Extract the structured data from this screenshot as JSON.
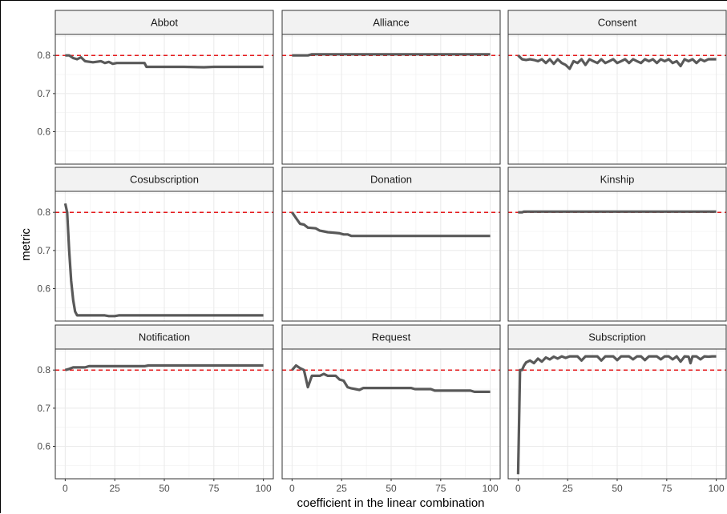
{
  "chart_data": {
    "type": "line",
    "xlabel": "coefficient in the linear combination",
    "ylabel": "metric",
    "xlim": [
      -5,
      105
    ],
    "ylim": [
      0.515,
      0.855
    ],
    "x_ticks": [
      0,
      25,
      50,
      75,
      100
    ],
    "x_tick_labels": [
      "0",
      "25",
      "50",
      "75",
      "100"
    ],
    "y_ticks": [
      0.6,
      0.7,
      0.8
    ],
    "y_tick_labels": [
      "0.6",
      "0.7",
      "0.8"
    ],
    "reference_line": {
      "y": 0.8,
      "style": "dashed",
      "color": "#e41a1c"
    },
    "line_color": "#595959",
    "panel_border": "#333333",
    "strip_fill": "#f2f2f2",
    "grid": true,
    "panels": [
      {
        "name": "Abbot",
        "points": [
          [
            0,
            0.8
          ],
          [
            2,
            0.8
          ],
          [
            4,
            0.793
          ],
          [
            6,
            0.79
          ],
          [
            8,
            0.795
          ],
          [
            10,
            0.785
          ],
          [
            14,
            0.782
          ],
          [
            18,
            0.785
          ],
          [
            20,
            0.78
          ],
          [
            22,
            0.783
          ],
          [
            24,
            0.778
          ],
          [
            26,
            0.78
          ],
          [
            30,
            0.78
          ],
          [
            40,
            0.78
          ],
          [
            41,
            0.77
          ],
          [
            60,
            0.77
          ],
          [
            70,
            0.769
          ],
          [
            75,
            0.77
          ],
          [
            100,
            0.77
          ]
        ]
      },
      {
        "name": "Alliance",
        "points": [
          [
            0,
            0.8
          ],
          [
            8,
            0.8
          ],
          [
            10,
            0.803
          ],
          [
            100,
            0.803
          ]
        ]
      },
      {
        "name": "Consent",
        "points": [
          [
            0,
            0.8
          ],
          [
            2,
            0.79
          ],
          [
            4,
            0.788
          ],
          [
            6,
            0.79
          ],
          [
            8,
            0.788
          ],
          [
            10,
            0.785
          ],
          [
            12,
            0.79
          ],
          [
            14,
            0.78
          ],
          [
            16,
            0.79
          ],
          [
            18,
            0.778
          ],
          [
            20,
            0.79
          ],
          [
            22,
            0.78
          ],
          [
            24,
            0.775
          ],
          [
            26,
            0.765
          ],
          [
            28,
            0.785
          ],
          [
            30,
            0.78
          ],
          [
            32,
            0.79
          ],
          [
            34,
            0.775
          ],
          [
            36,
            0.79
          ],
          [
            38,
            0.785
          ],
          [
            40,
            0.78
          ],
          [
            42,
            0.79
          ],
          [
            44,
            0.78
          ],
          [
            46,
            0.785
          ],
          [
            48,
            0.79
          ],
          [
            50,
            0.78
          ],
          [
            52,
            0.785
          ],
          [
            54,
            0.79
          ],
          [
            56,
            0.78
          ],
          [
            58,
            0.79
          ],
          [
            60,
            0.785
          ],
          [
            62,
            0.78
          ],
          [
            64,
            0.79
          ],
          [
            66,
            0.785
          ],
          [
            68,
            0.79
          ],
          [
            70,
            0.78
          ],
          [
            72,
            0.79
          ],
          [
            74,
            0.785
          ],
          [
            76,
            0.79
          ],
          [
            78,
            0.78
          ],
          [
            80,
            0.785
          ],
          [
            82,
            0.772
          ],
          [
            84,
            0.79
          ],
          [
            86,
            0.785
          ],
          [
            88,
            0.79
          ],
          [
            90,
            0.78
          ],
          [
            92,
            0.79
          ],
          [
            94,
            0.785
          ],
          [
            96,
            0.79
          ],
          [
            98,
            0.79
          ],
          [
            100,
            0.79
          ]
        ]
      },
      {
        "name": "Cosubscription",
        "points": [
          [
            0,
            0.823
          ],
          [
            1,
            0.8
          ],
          [
            2,
            0.7
          ],
          [
            3,
            0.62
          ],
          [
            4,
            0.57
          ],
          [
            5,
            0.54
          ],
          [
            6,
            0.53
          ],
          [
            20,
            0.53
          ],
          [
            22,
            0.528
          ],
          [
            25,
            0.528
          ],
          [
            27,
            0.53
          ],
          [
            100,
            0.53
          ]
        ]
      },
      {
        "name": "Donation",
        "points": [
          [
            0,
            0.8
          ],
          [
            2,
            0.785
          ],
          [
            4,
            0.77
          ],
          [
            6,
            0.768
          ],
          [
            8,
            0.76
          ],
          [
            12,
            0.758
          ],
          [
            14,
            0.752
          ],
          [
            16,
            0.75
          ],
          [
            18,
            0.748
          ],
          [
            22,
            0.746
          ],
          [
            24,
            0.745
          ],
          [
            26,
            0.742
          ],
          [
            28,
            0.742
          ],
          [
            30,
            0.738
          ],
          [
            100,
            0.738
          ]
        ]
      },
      {
        "name": "Kinship",
        "points": [
          [
            0,
            0.8
          ],
          [
            2,
            0.8
          ],
          [
            3,
            0.802
          ],
          [
            100,
            0.802
          ]
        ]
      },
      {
        "name": "Notification",
        "points": [
          [
            0,
            0.8
          ],
          [
            2,
            0.803
          ],
          [
            4,
            0.807
          ],
          [
            10,
            0.807
          ],
          [
            12,
            0.81
          ],
          [
            40,
            0.81
          ],
          [
            42,
            0.812
          ],
          [
            100,
            0.812
          ]
        ]
      },
      {
        "name": "Request",
        "points": [
          [
            0,
            0.8
          ],
          [
            2,
            0.812
          ],
          [
            4,
            0.805
          ],
          [
            6,
            0.8
          ],
          [
            8,
            0.755
          ],
          [
            10,
            0.785
          ],
          [
            14,
            0.785
          ],
          [
            16,
            0.79
          ],
          [
            18,
            0.785
          ],
          [
            22,
            0.785
          ],
          [
            24,
            0.775
          ],
          [
            26,
            0.772
          ],
          [
            28,
            0.755
          ],
          [
            30,
            0.752
          ],
          [
            32,
            0.75
          ],
          [
            34,
            0.748
          ],
          [
            36,
            0.753
          ],
          [
            60,
            0.753
          ],
          [
            62,
            0.75
          ],
          [
            70,
            0.75
          ],
          [
            72,
            0.746
          ],
          [
            90,
            0.746
          ],
          [
            92,
            0.743
          ],
          [
            100,
            0.743
          ]
        ]
      },
      {
        "name": "Subscription",
        "points": [
          [
            0,
            0.527
          ],
          [
            1,
            0.8
          ],
          [
            2,
            0.8
          ],
          [
            3,
            0.812
          ],
          [
            4,
            0.82
          ],
          [
            6,
            0.825
          ],
          [
            8,
            0.818
          ],
          [
            10,
            0.83
          ],
          [
            12,
            0.822
          ],
          [
            14,
            0.833
          ],
          [
            16,
            0.828
          ],
          [
            18,
            0.835
          ],
          [
            20,
            0.83
          ],
          [
            22,
            0.836
          ],
          [
            24,
            0.832
          ],
          [
            26,
            0.836
          ],
          [
            30,
            0.836
          ],
          [
            32,
            0.825
          ],
          [
            34,
            0.836
          ],
          [
            40,
            0.836
          ],
          [
            42,
            0.825
          ],
          [
            44,
            0.836
          ],
          [
            48,
            0.836
          ],
          [
            50,
            0.826
          ],
          [
            52,
            0.836
          ],
          [
            56,
            0.836
          ],
          [
            58,
            0.828
          ],
          [
            60,
            0.836
          ],
          [
            62,
            0.836
          ],
          [
            64,
            0.826
          ],
          [
            66,
            0.836
          ],
          [
            70,
            0.836
          ],
          [
            72,
            0.828
          ],
          [
            74,
            0.836
          ],
          [
            76,
            0.836
          ],
          [
            78,
            0.828
          ],
          [
            80,
            0.836
          ],
          [
            82,
            0.822
          ],
          [
            84,
            0.836
          ],
          [
            86,
            0.835
          ],
          [
            87,
            0.818
          ],
          [
            88,
            0.836
          ],
          [
            90,
            0.836
          ],
          [
            92,
            0.828
          ],
          [
            94,
            0.836
          ],
          [
            96,
            0.835
          ],
          [
            98,
            0.836
          ],
          [
            100,
            0.836
          ]
        ]
      }
    ]
  }
}
